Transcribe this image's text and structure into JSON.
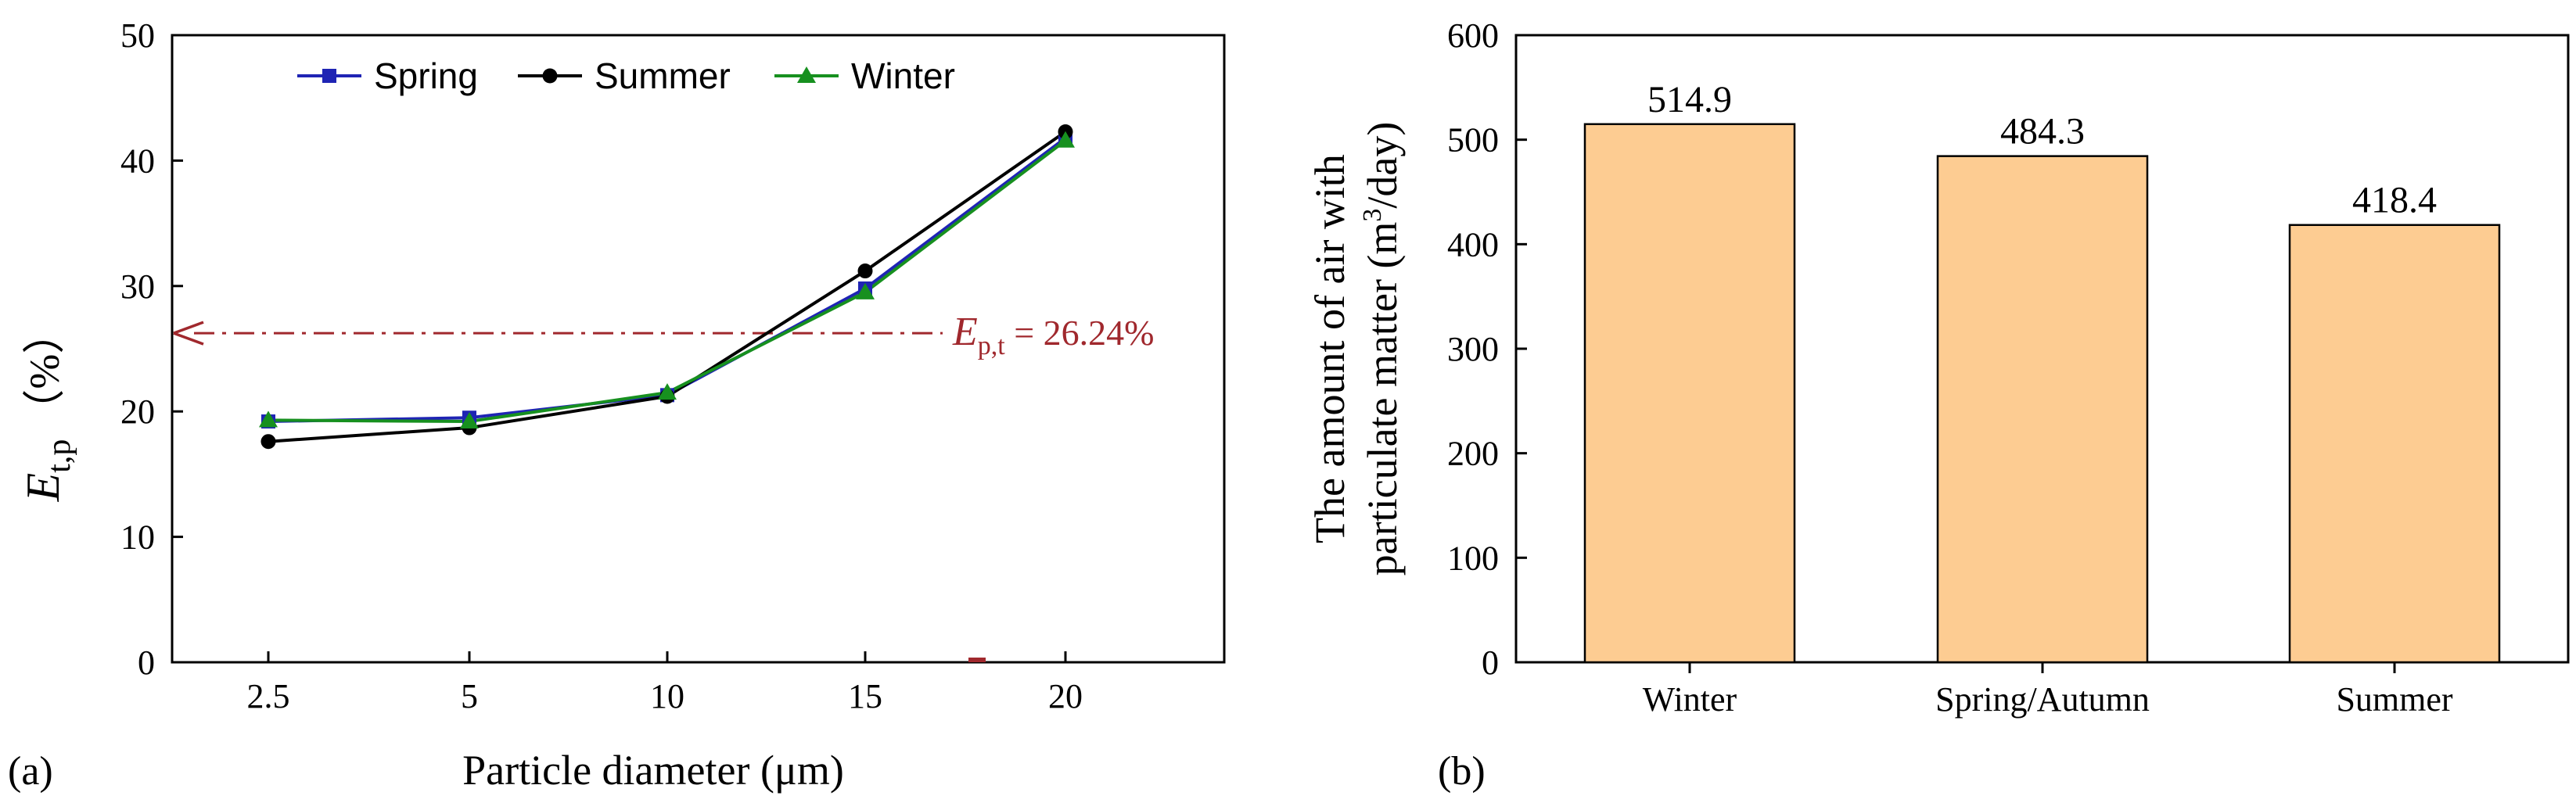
{
  "chart_data": [
    {
      "type": "line",
      "panel_label": "(a)",
      "title": "",
      "xlabel": "Particle diameter (μm)",
      "ylabel": "E",
      "ylabel_sub": "t,p",
      "ylabel_unit": "（%）",
      "categories": [
        "2.5",
        "5",
        "10",
        "15",
        "20"
      ],
      "ylim": [
        0,
        50
      ],
      "yticks": [
        "0",
        "10",
        "20",
        "30",
        "40",
        "50"
      ],
      "legend_position": "top",
      "series": [
        {
          "name": "Spring",
          "color": "#1f24b4",
          "marker": "square",
          "values": [
            19.2,
            19.5,
            21.3,
            29.8,
            41.8
          ]
        },
        {
          "name": "Summer",
          "color": "#000000",
          "marker": "circle",
          "values": [
            17.6,
            18.7,
            21.2,
            31.2,
            42.3
          ]
        },
        {
          "name": "Winter",
          "color": "#17901f",
          "marker": "triangle",
          "values": [
            19.3,
            19.2,
            21.5,
            29.5,
            41.6
          ]
        }
      ],
      "reference_line": {
        "value": 26.24,
        "label_main": "E",
        "label_sub": "p,t",
        "label_value": " = 26.24%",
        "color": "#a0282d",
        "style": "dash-dot arrow pointing left"
      }
    },
    {
      "type": "bar",
      "panel_label": "(b)",
      "title": "",
      "xlabel": "",
      "ylabel_line1": "The amount of air with",
      "ylabel_line2a": "particulate matter (m",
      "ylabel_sup": "3",
      "ylabel_line2b": "/day)",
      "categories": [
        "Winter",
        "Spring/Autumn",
        "Summer"
      ],
      "values": [
        514.9,
        484.3,
        418.4
      ],
      "value_labels": [
        "514.9",
        "484.3",
        "418.4"
      ],
      "ylim": [
        0,
        600
      ],
      "yticks": [
        "0",
        "100",
        "200",
        "300",
        "400",
        "500",
        "600"
      ],
      "bar_color": "#fdcc92"
    }
  ]
}
